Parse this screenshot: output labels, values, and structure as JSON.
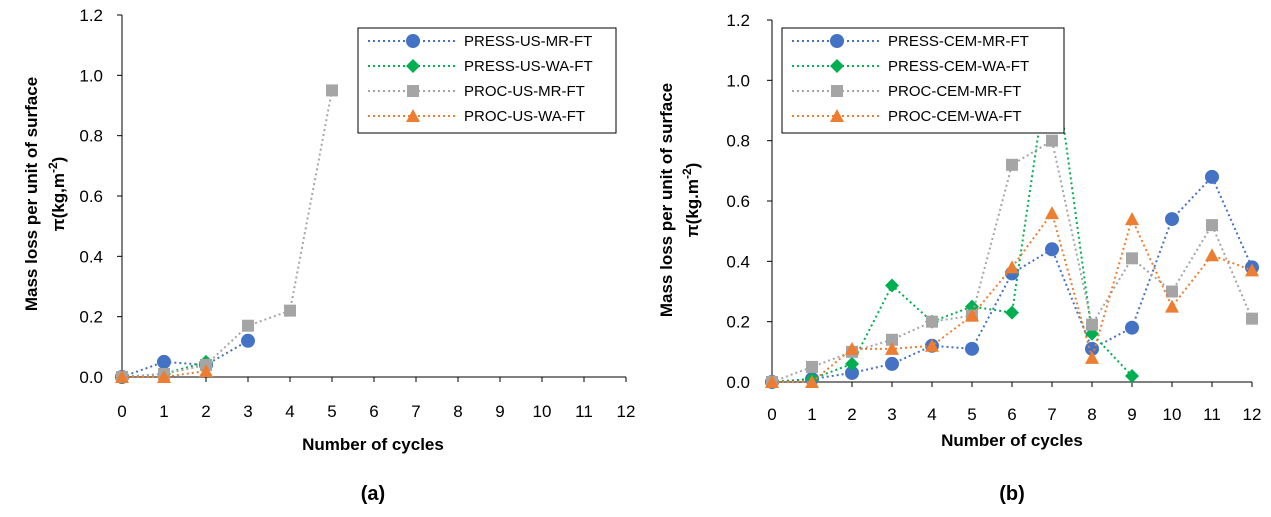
{
  "chart_data": [
    {
      "type": "line",
      "caption": "(a)",
      "xlabel": "Number of cycles",
      "ylabel": "Mass loss per unit of surface",
      "ylabel2": "π(kg,m",
      "ylabel2_sup": "-2",
      "ylabel2_end": ")",
      "xlim": [
        0,
        12
      ],
      "ylim": [
        0,
        1.2
      ],
      "xticks": [
        "0",
        "1",
        "2",
        "3",
        "4",
        "5",
        "6",
        "7",
        "8",
        "9",
        "10",
        "11",
        "12"
      ],
      "yticks": [
        "0.0",
        "0.2",
        "0.4",
        "0.6",
        "0.8",
        "1.0",
        "1.2"
      ],
      "grid": false,
      "legend_position": "top-right",
      "series": [
        {
          "name": "PRESS-US-MR-FT",
          "color": "#4472C4",
          "marker": "circle",
          "x": [
            0,
            1,
            2,
            3
          ],
          "values": [
            0.0,
            0.05,
            0.04,
            0.12
          ]
        },
        {
          "name": "PRESS-US-WA-FT",
          "color": "#00B050",
          "marker": "diamond",
          "x": [
            0,
            1,
            2
          ],
          "values": [
            0.0,
            0.01,
            0.05
          ]
        },
        {
          "name": "PROC-US-MR-FT",
          "color": "#A5A5A5",
          "marker": "square",
          "x": [
            0,
            1,
            2,
            3,
            4,
            5
          ],
          "values": [
            0.0,
            0.01,
            0.04,
            0.17,
            0.22,
            0.95
          ]
        },
        {
          "name": "PROC-US-WA-FT",
          "color": "#ED7D31",
          "marker": "triangle",
          "x": [
            0,
            1,
            2
          ],
          "values": [
            0.0,
            0.0,
            0.02
          ]
        }
      ]
    },
    {
      "type": "line",
      "caption": "(b)",
      "xlabel": "Number of cycles",
      "ylabel": "Mass loss per unit of surface",
      "ylabel2": "π(kg.m",
      "ylabel2_sup": "-2",
      "ylabel2_end": ")",
      "xlim": [
        0,
        12
      ],
      "ylim": [
        0,
        1.2
      ],
      "xticks": [
        "0",
        "1",
        "2",
        "3",
        "4",
        "5",
        "6",
        "7",
        "8",
        "9",
        "10",
        "11",
        "12"
      ],
      "yticks": [
        "0.0",
        "0.2",
        "0.4",
        "0.6",
        "0.8",
        "1.0",
        "1.2"
      ],
      "grid": false,
      "legend_position": "top-left",
      "series": [
        {
          "name": "PRESS-CEM-MR-FT",
          "color": "#4472C4",
          "marker": "circle",
          "x": [
            0,
            1,
            2,
            3,
            4,
            5,
            6,
            7,
            8,
            9,
            10,
            11,
            12
          ],
          "values": [
            0.0,
            0.01,
            0.03,
            0.06,
            0.12,
            0.11,
            0.36,
            0.44,
            0.11,
            0.18,
            0.54,
            0.68,
            0.38
          ]
        },
        {
          "name": "PRESS-CEM-WA-FT",
          "color": "#00B050",
          "marker": "diamond",
          "x": [
            0,
            1,
            2,
            3,
            4,
            5,
            6,
            7,
            8,
            9
          ],
          "values": [
            0.0,
            0.01,
            0.06,
            0.32,
            0.2,
            0.25,
            0.23,
            1.13,
            0.16,
            0.02
          ]
        },
        {
          "name": "PROC-CEM-MR-FT",
          "color": "#A5A5A5",
          "marker": "square",
          "x": [
            0,
            1,
            2,
            3,
            4,
            5,
            6,
            7,
            8,
            9,
            10,
            11,
            12
          ],
          "values": [
            0.0,
            0.05,
            0.1,
            0.14,
            0.2,
            0.22,
            0.72,
            0.8,
            0.19,
            0.41,
            0.3,
            0.52,
            0.21
          ]
        },
        {
          "name": "PROC-CEM-WA-FT",
          "color": "#ED7D31",
          "marker": "triangle",
          "x": [
            0,
            1,
            2,
            3,
            4,
            5,
            6,
            7,
            8,
            9,
            10,
            11,
            12
          ],
          "values": [
            0.0,
            0.0,
            0.11,
            0.11,
            0.12,
            0.22,
            0.38,
            0.56,
            0.08,
            0.54,
            0.25,
            0.42,
            0.37
          ]
        }
      ]
    }
  ]
}
